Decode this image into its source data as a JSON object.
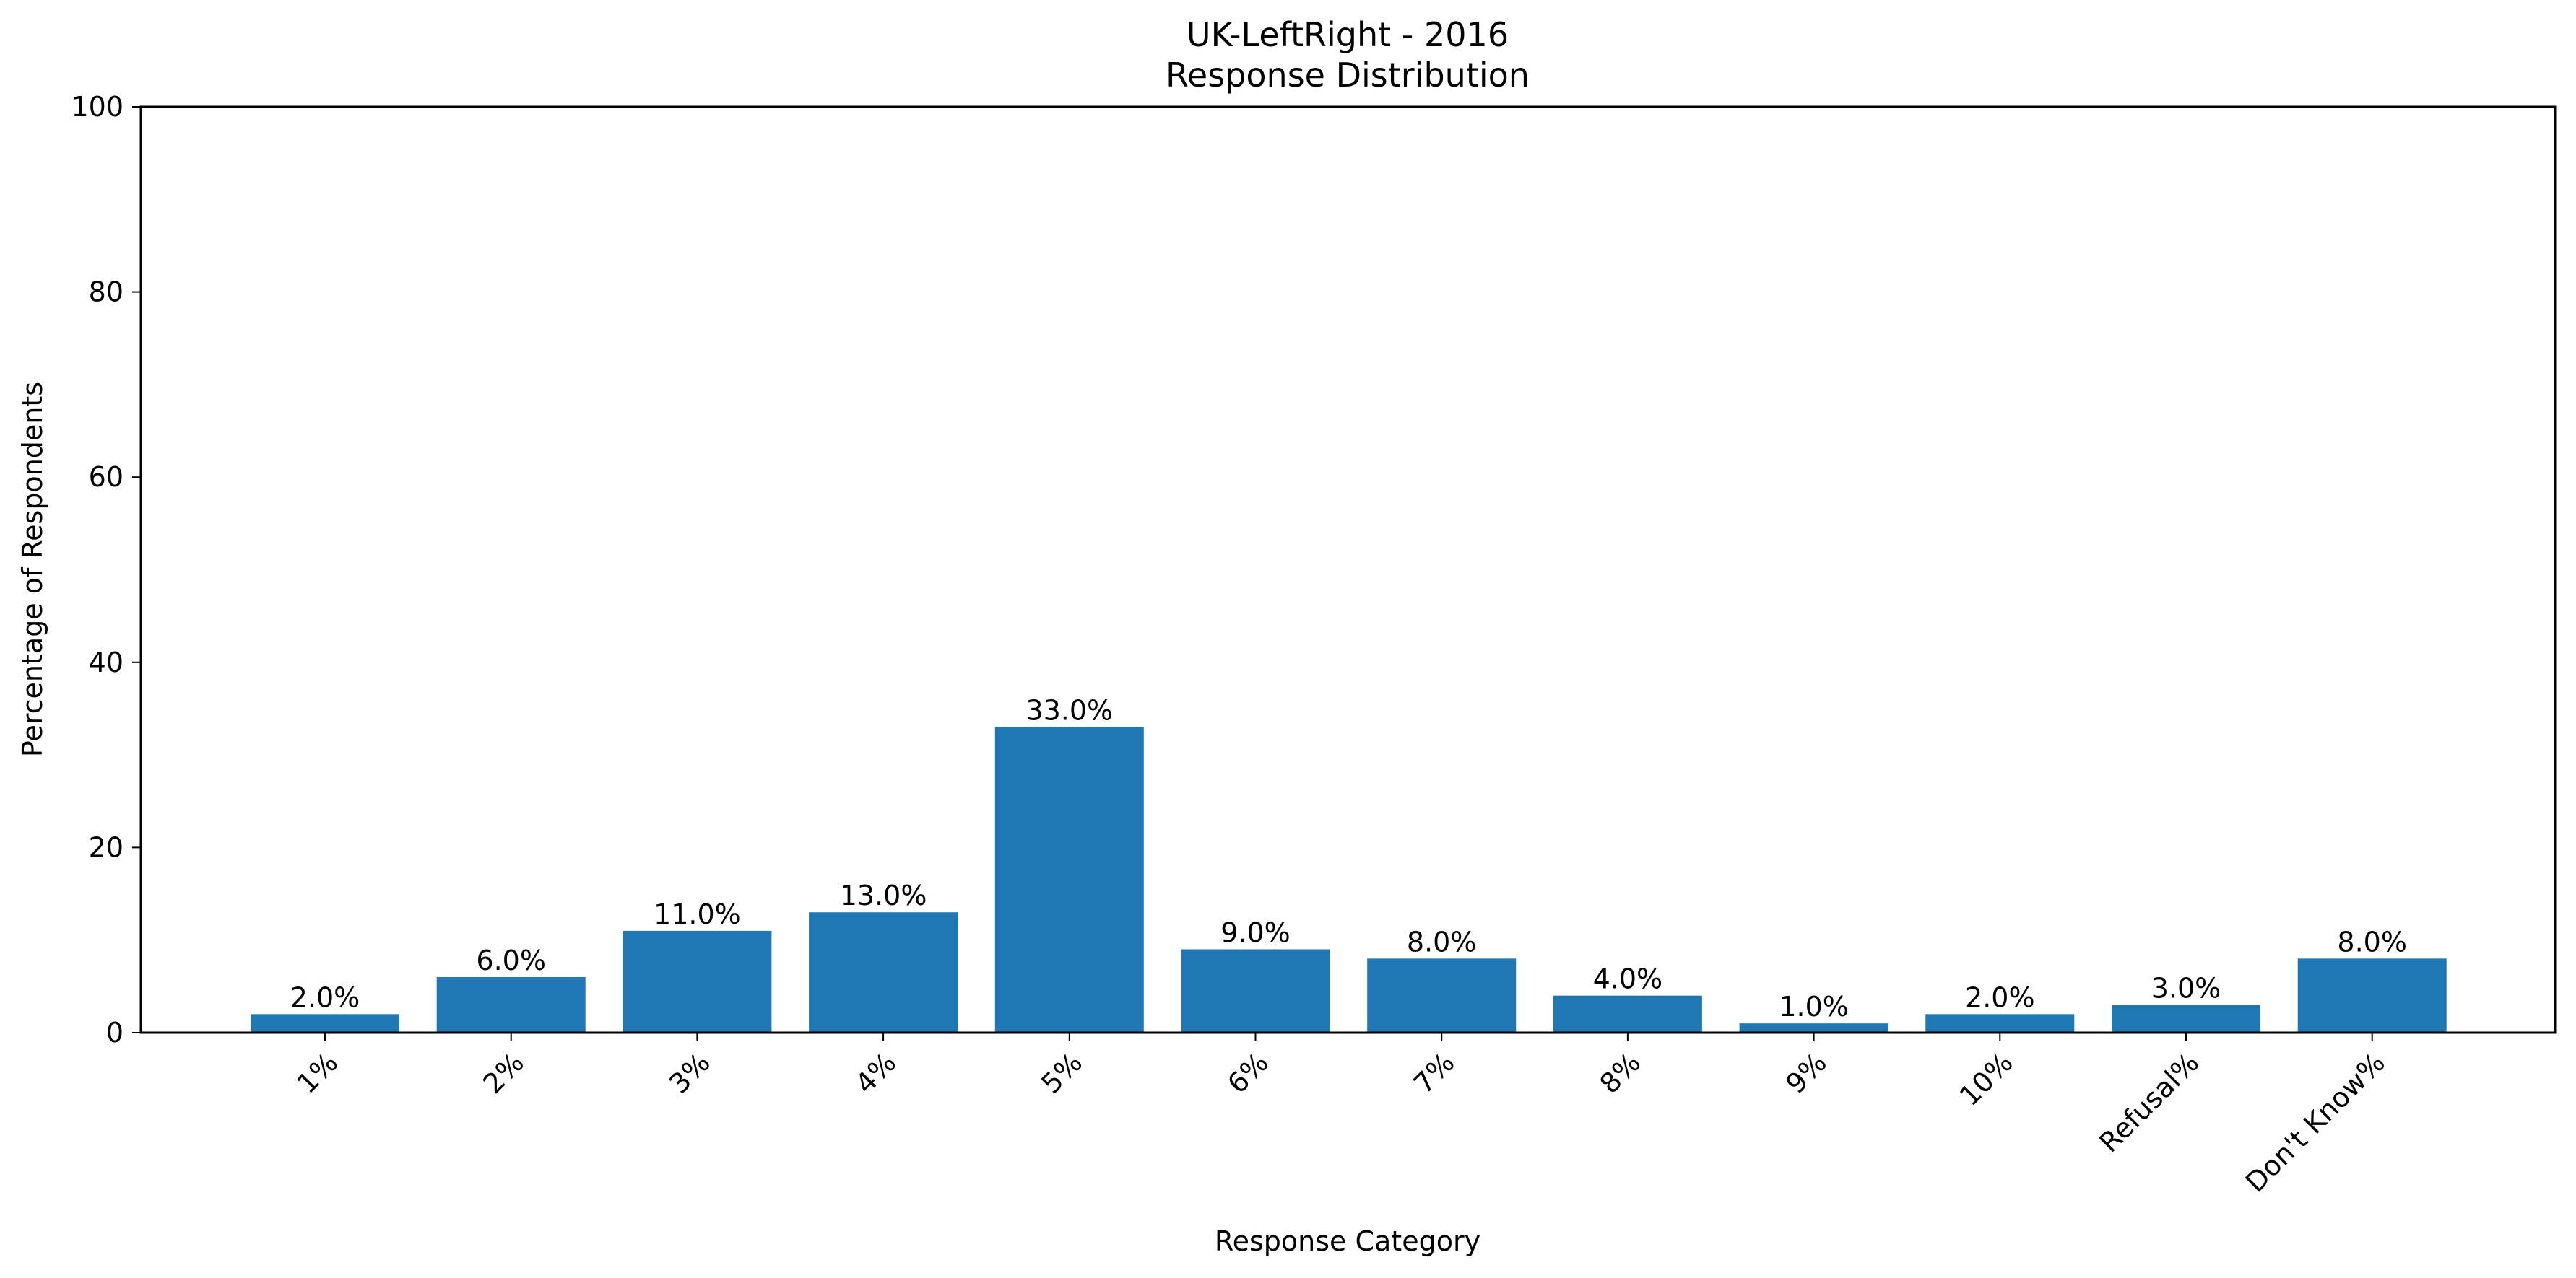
{
  "chart_data": {
    "type": "bar",
    "title": "UK-LeftRight - 2016",
    "subtitle": "Response Distribution",
    "xlabel": "Response Category",
    "ylabel": "Percentage of Respondents",
    "categories": [
      "1%",
      "2%",
      "3%",
      "4%",
      "5%",
      "6%",
      "7%",
      "8%",
      "9%",
      "10%",
      "Refusal%",
      "Don't Know%"
    ],
    "values": [
      2.0,
      6.0,
      11.0,
      13.0,
      33.0,
      9.0,
      8.0,
      4.0,
      1.0,
      2.0,
      3.0,
      8.0
    ],
    "value_labels": [
      "2.0%",
      "6.0%",
      "11.0%",
      "13.0%",
      "33.0%",
      "9.0%",
      "8.0%",
      "4.0%",
      "1.0%",
      "2.0%",
      "3.0%",
      "8.0%"
    ],
    "ylim": [
      0,
      100
    ],
    "yticks": [
      0,
      20,
      40,
      60,
      80,
      100
    ],
    "bar_color": "#1f77b4",
    "grid": false,
    "legend": false
  }
}
